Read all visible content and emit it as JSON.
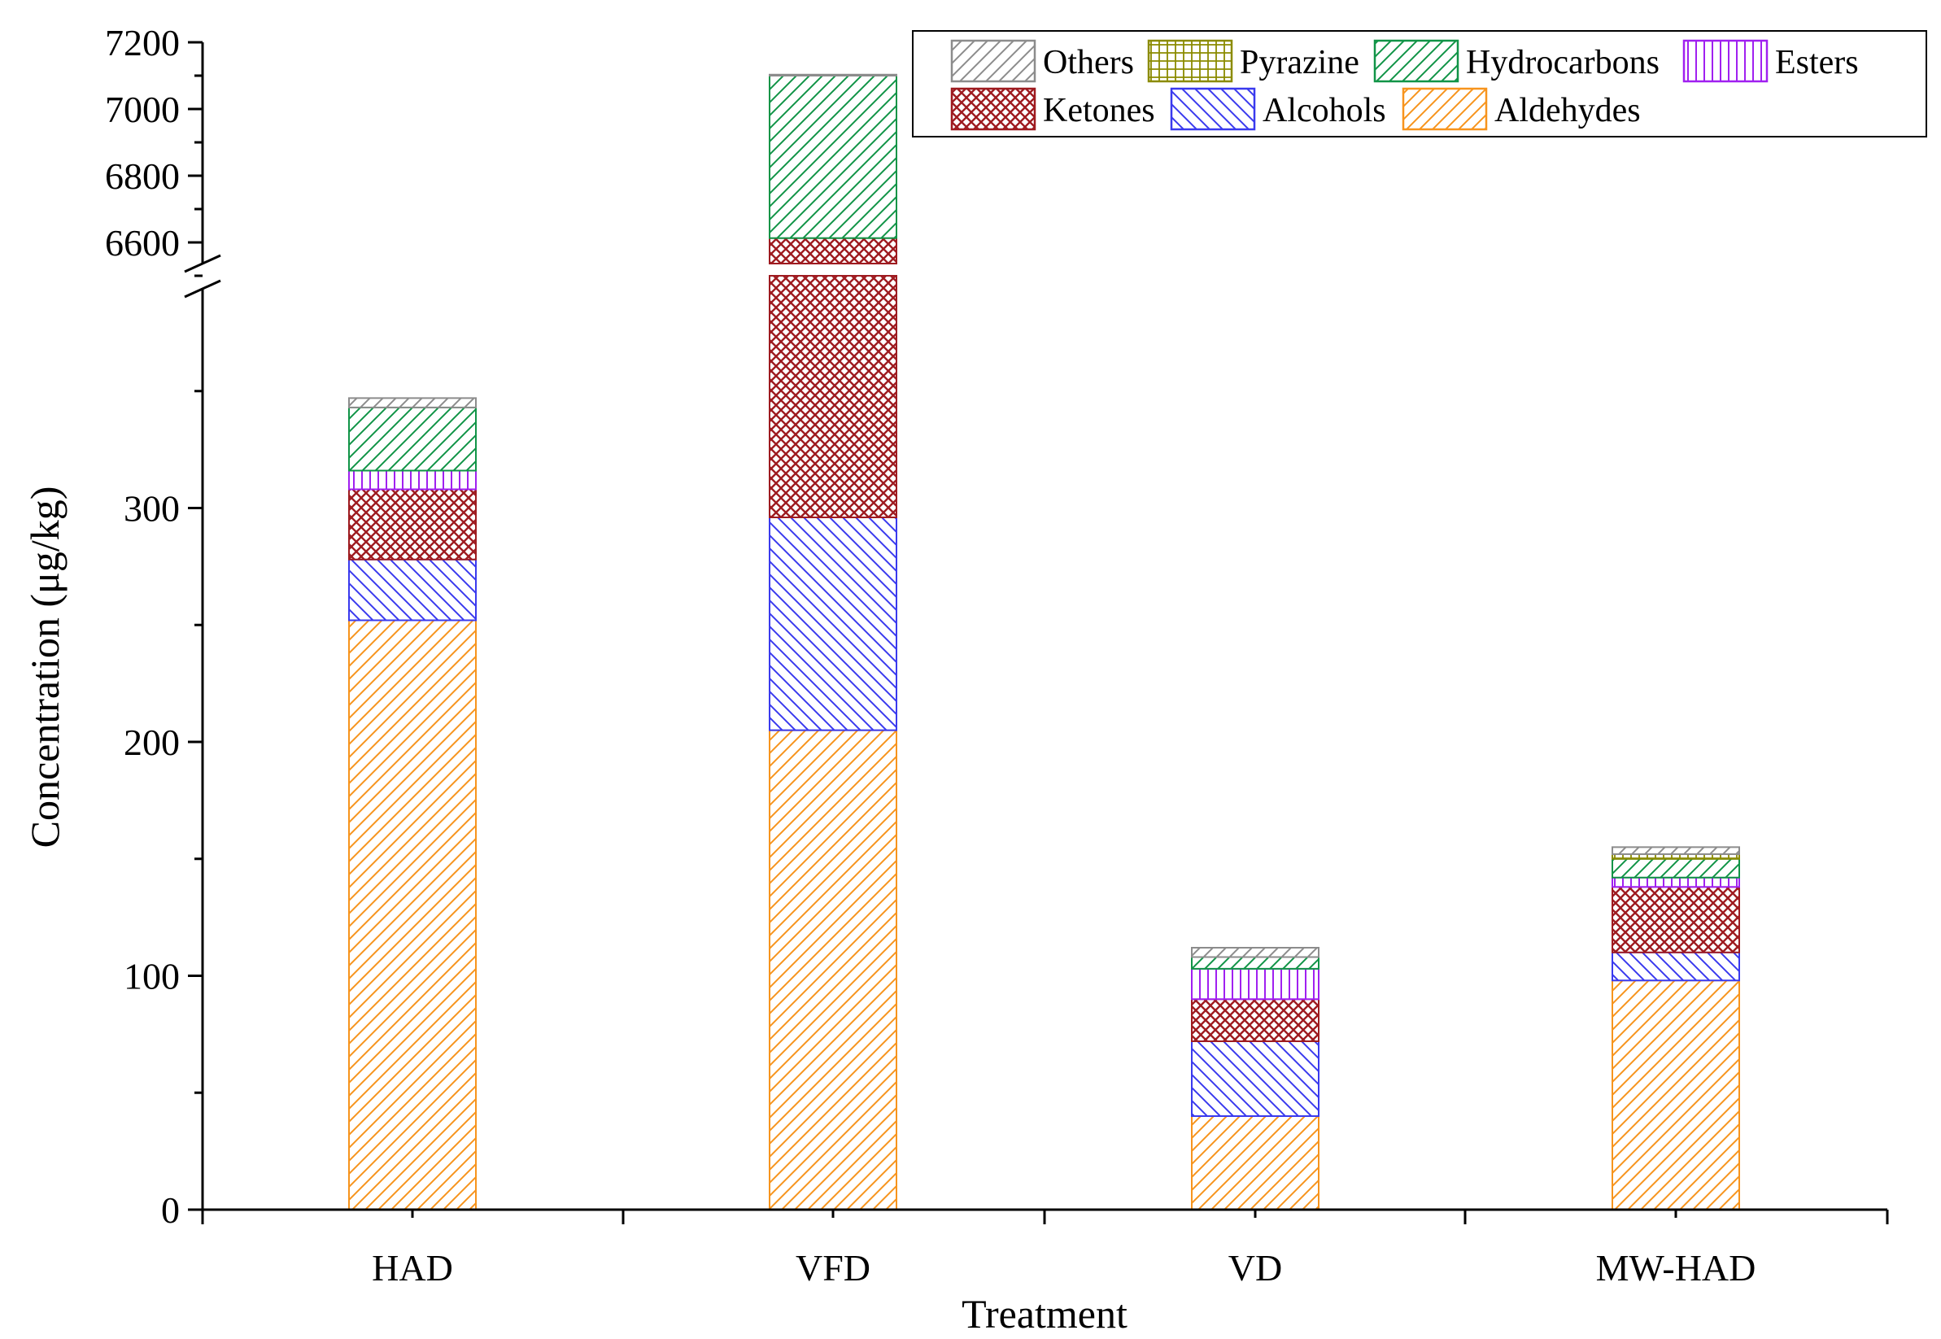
{
  "chart_data": {
    "type": "bar",
    "stacked": true,
    "xlabel": "Treatment",
    "ylabel": "Concentration (μg/kg)",
    "categories": [
      "HAD",
      "VFD",
      "VD",
      "MW-HAD"
    ],
    "y_axis_break": {
      "lower_range": [
        0,
        400
      ],
      "upper_range": [
        6500,
        7200
      ]
    },
    "y_ticks_lower": [
      0,
      100,
      200,
      300
    ],
    "y_ticks_upper": [
      6600,
      6800,
      7000,
      7200
    ],
    "legend": {
      "position": "top-right"
    },
    "series": [
      {
        "name": "Aldehydes",
        "color": "#f7941d",
        "pattern": "hatch-up",
        "values": [
          252,
          205,
          40,
          98
        ]
      },
      {
        "name": "Alcohols",
        "color": "#3a3aee",
        "pattern": "hatch-down",
        "values": [
          26,
          91,
          32,
          12
        ]
      },
      {
        "name": "Ketones",
        "color": "#9e1b20",
        "pattern": "crosshatch",
        "values": [
          30,
          6317,
          18,
          28
        ]
      },
      {
        "name": "Esters",
        "color": "#a020f0",
        "pattern": "vertical",
        "values": [
          8,
          0,
          13,
          4
        ]
      },
      {
        "name": "Hydrocarbons",
        "color": "#119447",
        "pattern": "hatch-up",
        "values": [
          27,
          487,
          5,
          8
        ]
      },
      {
        "name": "Pyrazine",
        "color": "#8b8b00",
        "pattern": "grid",
        "values": [
          0,
          0,
          0,
          2
        ]
      },
      {
        "name": "Others",
        "color": "#8c8c8c",
        "pattern": "hatch-up",
        "values": [
          4,
          3,
          4,
          3
        ]
      }
    ],
    "legend_order": [
      "Others",
      "Pyrazine",
      "Hydrocarbons",
      "Esters",
      "Ketones",
      "Alcohols",
      "Aldehydes"
    ]
  }
}
